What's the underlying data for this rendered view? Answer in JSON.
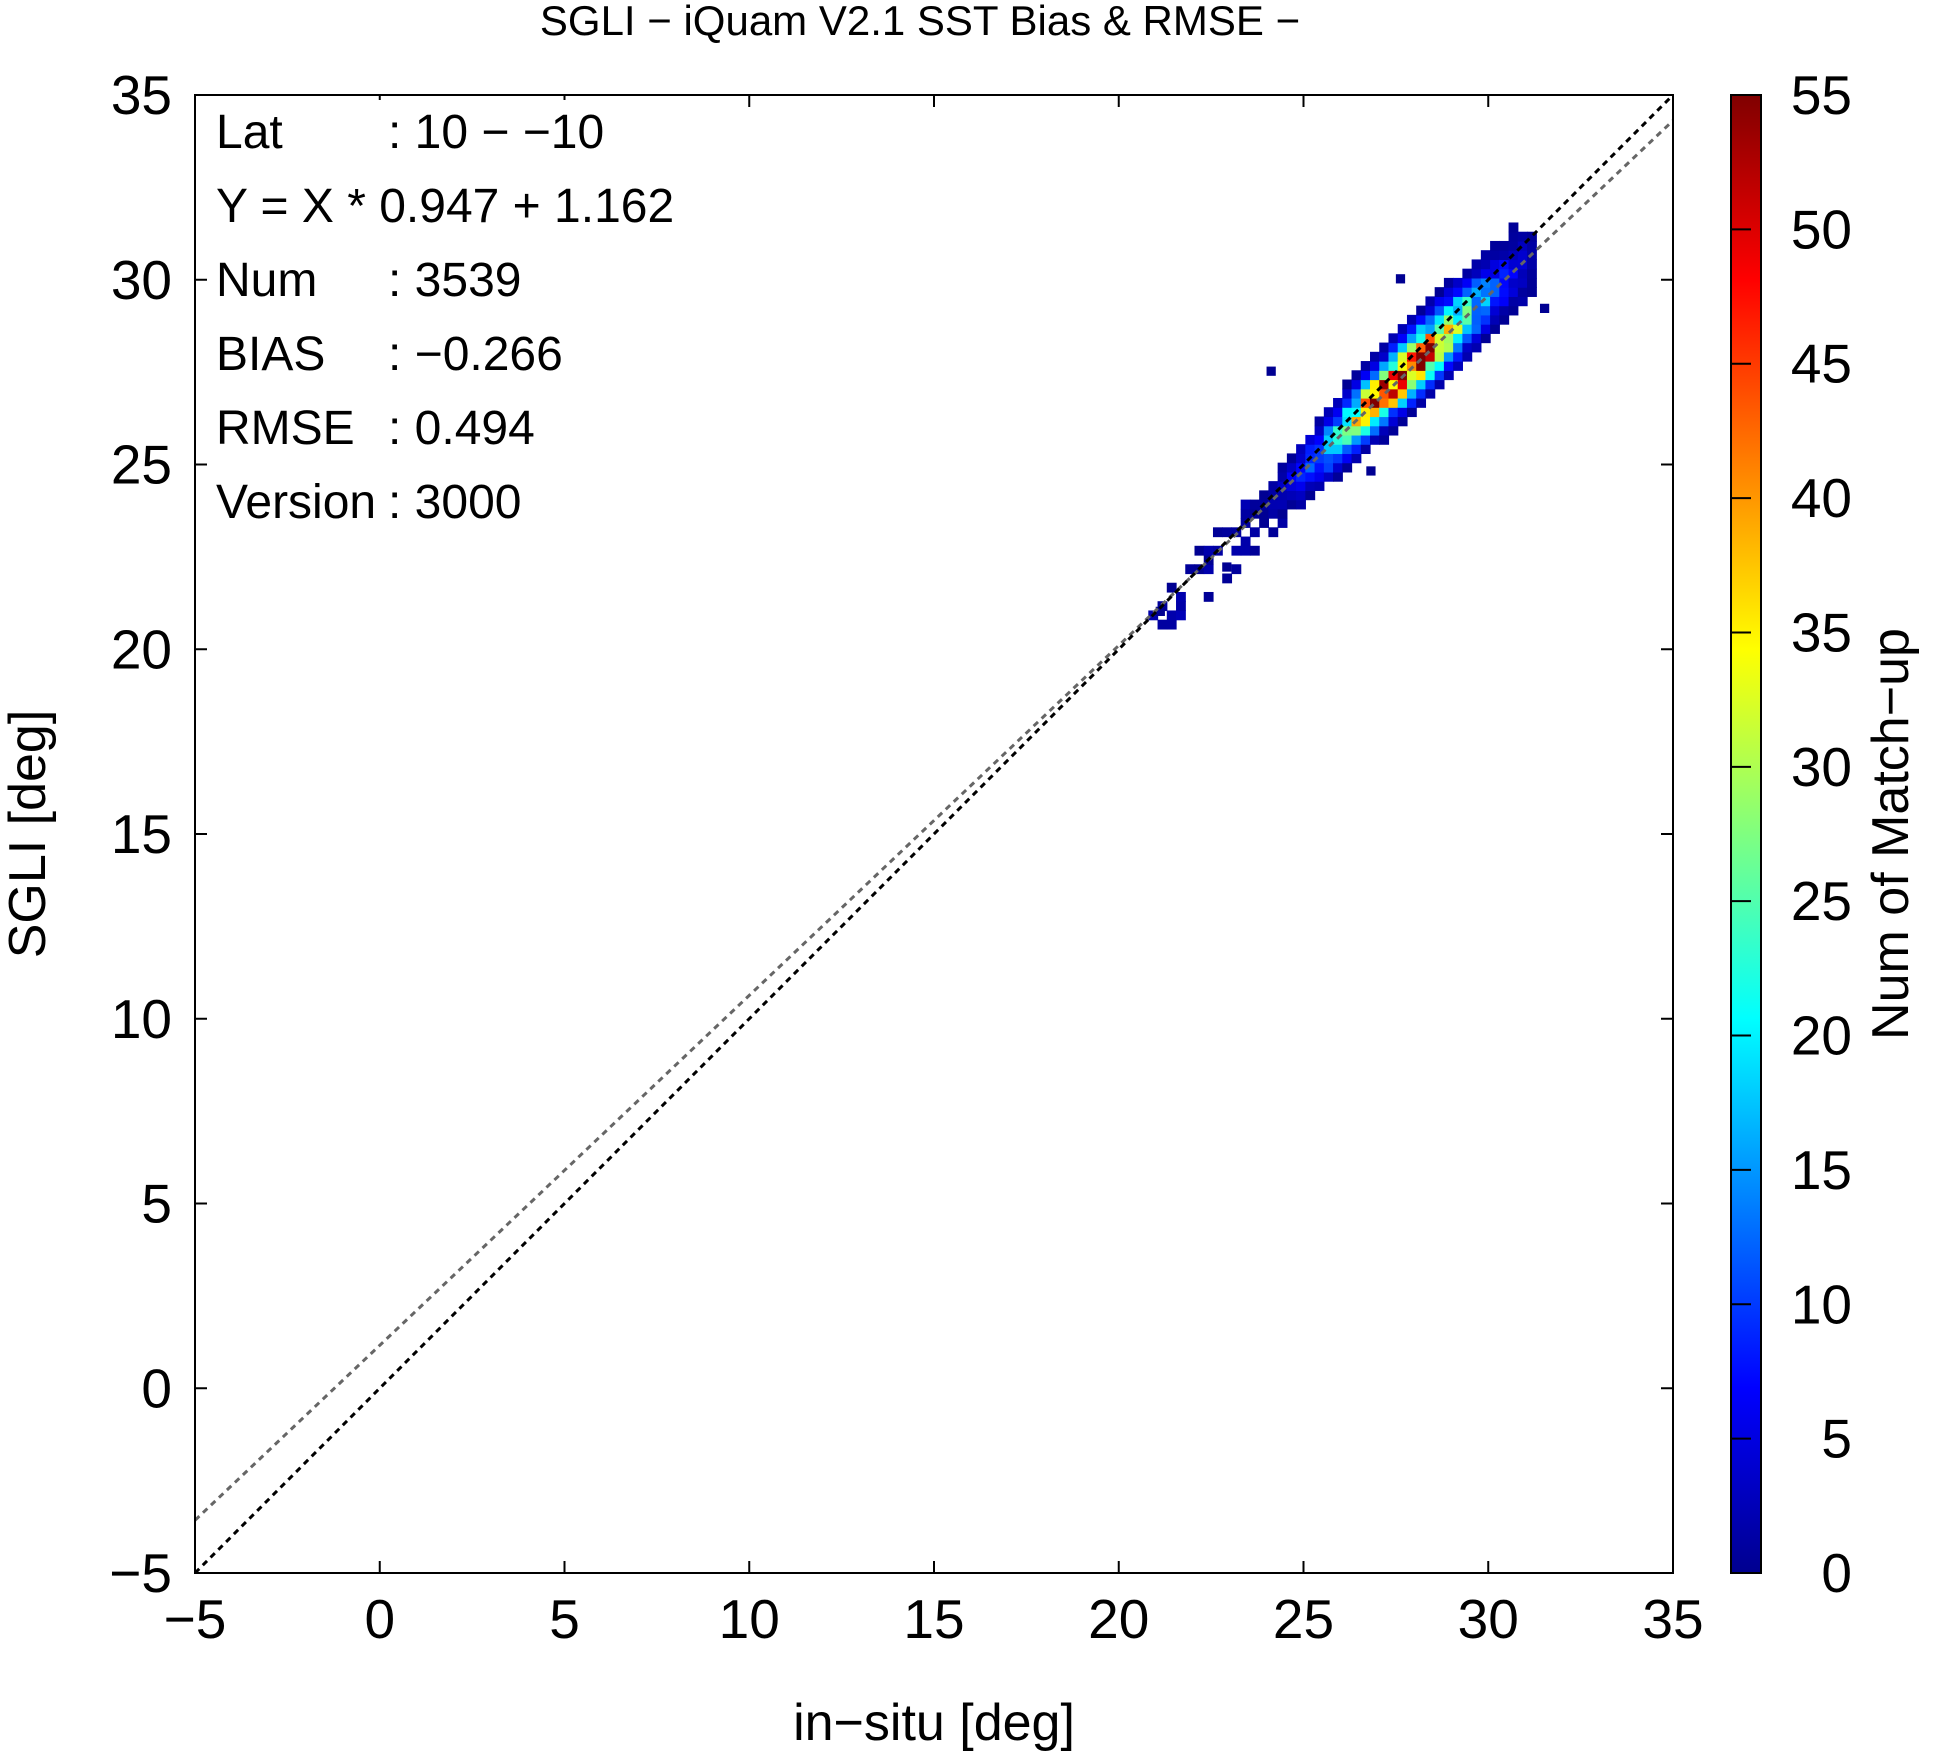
{
  "chart_data": {
    "type": "heatmap",
    "title": "SGLI − iQuam V2.1 SST Bias & RMSE  −",
    "xlabel": "in−situ [deg]",
    "ylabel": "SGLI [deg]",
    "xlim": [
      -5,
      35
    ],
    "ylim": [
      -5,
      35
    ],
    "x_ticks": [
      "−5",
      "0",
      "5",
      "10",
      "15",
      "20",
      "25",
      "30",
      "35"
    ],
    "y_ticks": [
      "−5",
      "0",
      "5",
      "10",
      "15",
      "20",
      "25",
      "30",
      "35"
    ],
    "colorbar": {
      "label": "Num of Match−up",
      "range": [
        0,
        55
      ],
      "ticks": [
        "0",
        "5",
        "10",
        "15",
        "20",
        "25",
        "30",
        "35",
        "40",
        "45",
        "50",
        "55"
      ],
      "colormap": "jet"
    },
    "stats": [
      {
        "key": "Lat",
        "value": ": 10 − −10"
      },
      {
        "key": "Y = X * 0.947 + 1.162",
        "value": ""
      },
      {
        "key": "Num",
        "value": ": 3539"
      },
      {
        "key": "BIAS",
        "value": ": −0.266"
      },
      {
        "key": "RMSE",
        "value": ": 0.494"
      },
      {
        "key": "Version",
        "value": ": 3000"
      }
    ],
    "reference_lines": [
      {
        "name": "1:1",
        "slope": 1.0,
        "intercept": 0.0,
        "color": "#000000",
        "style": "dashed"
      },
      {
        "name": "regression",
        "slope": 0.947,
        "intercept": 1.162,
        "color": "#666666",
        "style": "dashed"
      }
    ],
    "density": {
      "bin_size": 0.25,
      "along_range": [
        20.8,
        31.2
      ],
      "peak_center": 27.4,
      "peak_count": 50,
      "offset_bias": -0.266,
      "cross_spread": 0.42,
      "outliers": [
        [
          21.0,
          20.9
        ],
        [
          24.0,
          27.4
        ],
        [
          26.7,
          24.7
        ],
        [
          31.4,
          29.1
        ],
        [
          22.8,
          22.1
        ],
        [
          27.5,
          29.9
        ]
      ]
    }
  }
}
